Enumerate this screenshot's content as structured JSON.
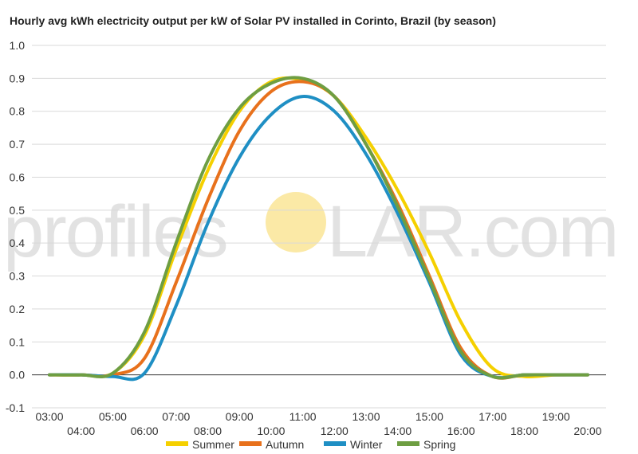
{
  "chart_data": {
    "type": "line",
    "title": "Hourly avg kWh electricity output per kW of Solar PV installed in Corinto, Brazil (by season)",
    "xlabel": "",
    "ylabel": "",
    "x_categories": [
      "03:00",
      "04:00",
      "05:00",
      "06:00",
      "07:00",
      "08:00",
      "09:00",
      "10:00",
      "11:00",
      "12:00",
      "13:00",
      "14:00",
      "15:00",
      "16:00",
      "17:00",
      "18:00",
      "19:00",
      "20:00"
    ],
    "ylim": [
      -0.1,
      1.0
    ],
    "y_ticks": [
      "1.0",
      "0.9",
      "0.8",
      "0.7",
      "0.6",
      "0.5",
      "0.4",
      "0.3",
      "0.2",
      "0.1",
      "0.0",
      "-0.1"
    ],
    "grid": true,
    "legend_position": "bottom",
    "series": [
      {
        "name": "Summer",
        "color": "#f5d000",
        "values": [
          0,
          0,
          0.005,
          0.12,
          0.38,
          0.62,
          0.8,
          0.89,
          0.895,
          0.845,
          0.72,
          0.56,
          0.37,
          0.16,
          0.02,
          -0.005,
          0,
          0
        ]
      },
      {
        "name": "Autumn",
        "color": "#e8711c",
        "values": [
          0,
          0,
          0,
          0.05,
          0.28,
          0.53,
          0.74,
          0.86,
          0.89,
          0.845,
          0.7,
          0.52,
          0.3,
          0.08,
          -0.005,
          0,
          0,
          0
        ]
      },
      {
        "name": "Winter",
        "color": "#1f8fc4",
        "values": [
          0,
          0,
          -0.005,
          0.005,
          0.21,
          0.46,
          0.66,
          0.79,
          0.845,
          0.8,
          0.67,
          0.49,
          0.28,
          0.06,
          -0.005,
          0,
          0,
          0
        ]
      },
      {
        "name": "Spring",
        "color": "#6e9e42",
        "values": [
          0,
          0,
          0.005,
          0.13,
          0.4,
          0.65,
          0.81,
          0.885,
          0.9,
          0.845,
          0.7,
          0.51,
          0.29,
          0.07,
          -0.005,
          0,
          0,
          0
        ]
      }
    ]
  },
  "watermark": {
    "left": "profile",
    "right": "LAR.com",
    "sun_color": "#fbe9a6"
  }
}
